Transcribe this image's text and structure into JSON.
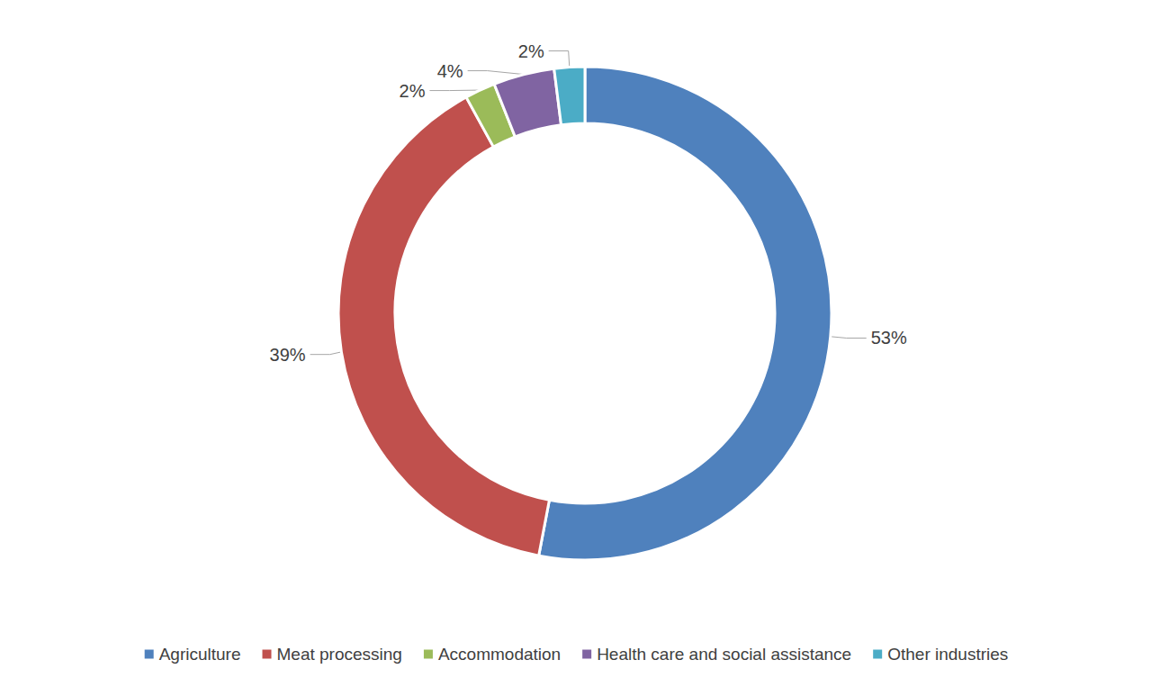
{
  "chart_data": {
    "type": "pie",
    "categories": [
      "Agriculture",
      "Meat processing",
      "Accommodation",
      "Health care and social assistance",
      "Other industries"
    ],
    "values": [
      53,
      39,
      2,
      4,
      2
    ],
    "value_labels": [
      "53%",
      "39%",
      "2%",
      "4%",
      "2%"
    ],
    "colors": [
      "#4f81bd",
      "#c0504d",
      "#9bbb59",
      "#8064a2",
      "#4bacc6"
    ],
    "legend": "bottom",
    "data_labels": true
  }
}
